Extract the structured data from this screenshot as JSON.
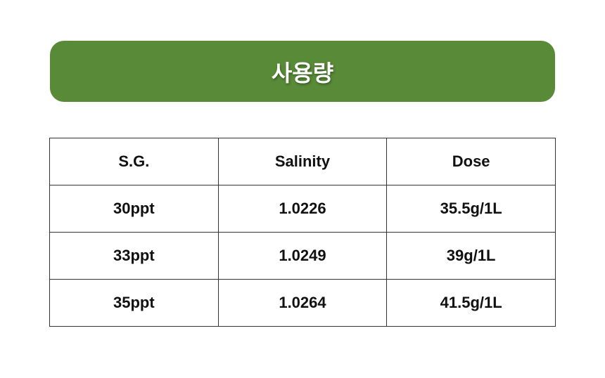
{
  "title": "사용량",
  "colors": {
    "banner": "#588a37"
  },
  "table": {
    "headers": [
      "S.G.",
      "Salinity",
      "Dose"
    ],
    "rows": [
      [
        "30ppt",
        "1.0226",
        "35.5g/1L"
      ],
      [
        "33ppt",
        "1.0249",
        "39g/1L"
      ],
      [
        "35ppt",
        "1.0264",
        "41.5g/1L"
      ]
    ]
  }
}
